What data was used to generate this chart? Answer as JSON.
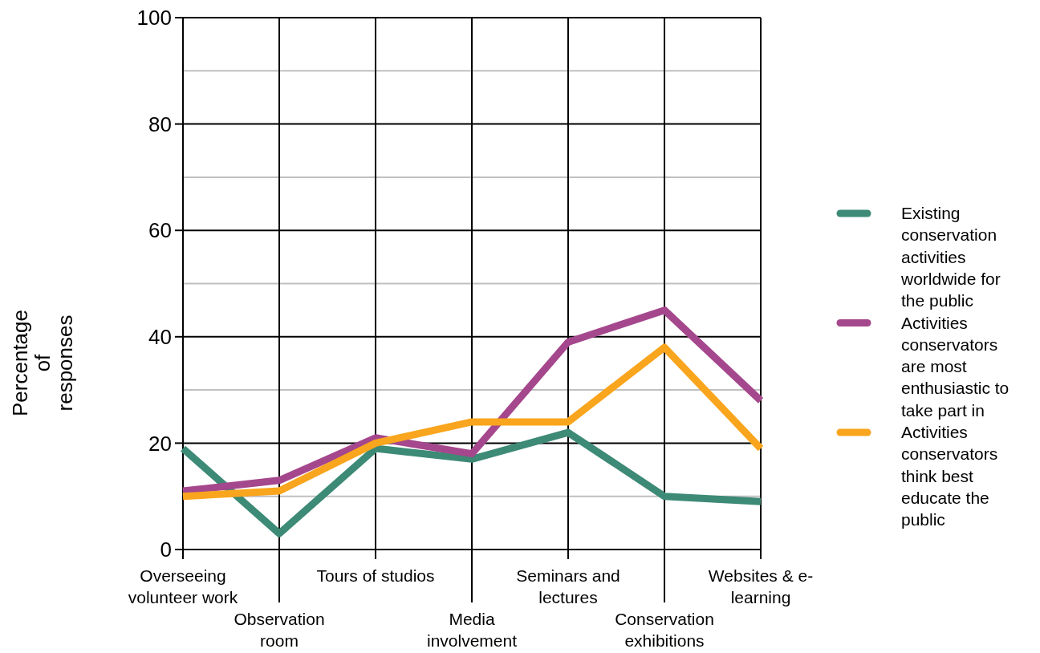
{
  "chart_data": {
    "type": "line",
    "ylabel": "Percentage of responses",
    "categories": [
      "Overseeing volunteer work",
      "Observation room",
      "Tours of studios",
      "Media involvement",
      "Seminars and lectures",
      "Conservation exhibitions",
      "Websites & e-learning"
    ],
    "series": [
      {
        "name": "Existing conservation activities worldwide for the public",
        "color": "#3d8a76",
        "values": [
          19,
          3,
          19,
          17,
          22,
          10,
          9
        ]
      },
      {
        "name": "Activities conservators are most enthusiastic to take part in",
        "color": "#a5478d",
        "values": [
          11,
          13,
          21,
          18,
          39,
          45,
          28
        ]
      },
      {
        "name": "Activities conservators think best educate the public",
        "color": "#f9a51d",
        "values": [
          10,
          11,
          20,
          24,
          24,
          38,
          19
        ]
      }
    ],
    "ylim": [
      0,
      100
    ],
    "yticks": [
      0,
      20,
      40,
      60,
      80,
      100
    ],
    "grid": true,
    "legend": "right",
    "marker": "none",
    "line_style": "solid"
  }
}
